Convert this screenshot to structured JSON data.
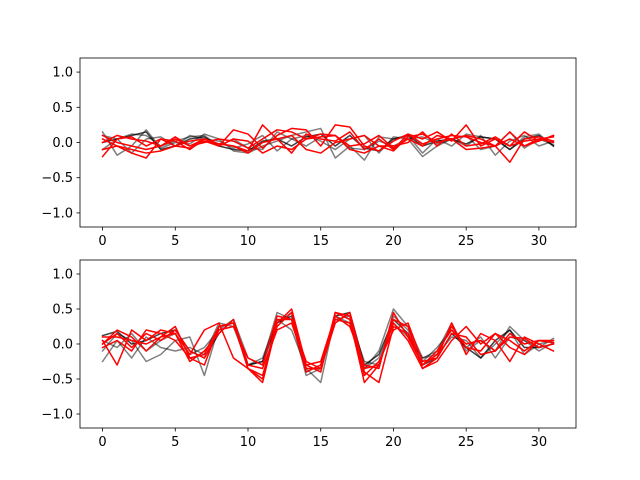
{
  "chart_data": [
    {
      "type": "line",
      "title": "",
      "xlabel": "",
      "ylabel": "",
      "xlim": [
        -1.55,
        32.55
      ],
      "ylim": [
        -1.2,
        1.2
      ],
      "xticks": [
        0,
        5,
        10,
        15,
        20,
        25,
        30
      ],
      "yticks": [
        -1.0,
        -0.5,
        0.0,
        0.5,
        1.0
      ],
      "xtick_labels": [
        "0",
        "5",
        "10",
        "15",
        "20",
        "25",
        "30"
      ],
      "ytick_labels": [
        "−1.0",
        "−0.5",
        "0.0",
        "0.5",
        "1.0"
      ],
      "grid": false,
      "series": [
        {
          "color": "#000000",
          "alpha": 0.5,
          "values": [
            0.15,
            -0.18,
            -0.05,
            0.18,
            -0.08,
            0.0,
            -0.02,
            0.12,
            0.05,
            -0.12,
            -0.15,
            -0.05,
            0.02,
            0.1,
            0.15,
            0.2,
            -0.22,
            -0.05,
            -0.25,
            0.08,
            0.05,
            0.1,
            -0.15,
            0.05,
            -0.05,
            0.12,
            0.08,
            0.05,
            -0.1,
            0.08,
            0.12,
            -0.05
          ]
        },
        {
          "color": "#000000",
          "alpha": 0.5,
          "values": [
            0.1,
            0.05,
            -0.15,
            0.05,
            0.08,
            -0.05,
            0.1,
            0.05,
            0.02,
            -0.08,
            -0.02,
            0.1,
            -0.12,
            0.05,
            0.1,
            0.02,
            -0.1,
            0.05,
            0.1,
            -0.15,
            0.08,
            0.05,
            -0.2,
            -0.05,
            0.05,
            0.1,
            -0.1,
            -0.05,
            0.15,
            -0.08,
            0.05,
            -0.03
          ]
        },
        {
          "color": "#000000",
          "alpha": 0.5,
          "values": [
            -0.1,
            0.05,
            0.12,
            0.1,
            -0.05,
            0.02,
            0.08,
            0.1,
            -0.05,
            0.05,
            -0.08,
            -0.1,
            0.15,
            0.05,
            -0.05,
            0.08,
            0.1,
            -0.08,
            -0.1,
            0.02,
            -0.05,
            0.05,
            0.08,
            -0.02,
            0.05,
            -0.05,
            0.1,
            -0.18,
            0.02,
            0.1,
            -0.05,
            0.02
          ]
        },
        {
          "color": "#000000",
          "alpha": 0.75,
          "values": [
            0.0,
            0.05,
            0.1,
            0.15,
            -0.1,
            -0.05,
            0.05,
            0.08,
            -0.05,
            -0.1,
            -0.12,
            0.02,
            0.05,
            -0.05,
            0.08,
            0.12,
            -0.05,
            0.1,
            -0.08,
            -0.12,
            0.05,
            0.1,
            -0.05,
            0.02,
            0.05,
            -0.02,
            0.08,
            0.05,
            -0.1,
            0.05,
            0.1,
            -0.05
          ]
        },
        {
          "color": "#ff0000",
          "alpha": 1.0,
          "values": [
            -0.2,
            0.05,
            0.08,
            -0.05,
            0.05,
            -0.05,
            0.02,
            0.05,
            -0.05,
            0.18,
            0.12,
            -0.08,
            0.1,
            0.2,
            0.18,
            -0.05,
            0.25,
            0.22,
            -0.05,
            -0.12,
            0.02,
            0.12,
            0.05,
            0.15,
            0.02,
            0.25,
            -0.05,
            0.05,
            -0.05,
            0.15,
            0.02,
            0.1
          ]
        },
        {
          "color": "#ff0000",
          "alpha": 1.0,
          "values": [
            0.05,
            -0.05,
            -0.15,
            -0.22,
            0.05,
            0.02,
            -0.1,
            0.05,
            -0.02,
            -0.05,
            -0.12,
            0.25,
            0.05,
            -0.15,
            0.12,
            0.05,
            0.02,
            0.15,
            -0.1,
            0.05,
            -0.1,
            0.12,
            -0.02,
            0.05,
            0.1,
            0.08,
            0.0,
            -0.05,
            0.15,
            -0.05,
            0.05,
            0.08
          ]
        },
        {
          "color": "#ff0000",
          "alpha": 1.0,
          "values": [
            0.1,
            0.0,
            -0.05,
            -0.1,
            -0.05,
            0.05,
            -0.05,
            0.0,
            0.05,
            0.02,
            -0.08,
            0.05,
            0.18,
            0.15,
            0.05,
            0.12,
            0.1,
            -0.05,
            -0.02,
            0.1,
            -0.08,
            0.05,
            -0.05,
            0.1,
            0.05,
            0.1,
            0.05,
            -0.05,
            -0.28,
            0.05,
            0.08,
            0.02
          ]
        },
        {
          "color": "#ff0000",
          "alpha": 1.0,
          "values": [
            -0.1,
            -0.05,
            -0.1,
            -0.15,
            -0.12,
            -0.05,
            -0.08,
            0.02,
            -0.05,
            0.05,
            0.02,
            -0.15,
            -0.05,
            -0.1,
            0.05,
            0.08,
            0.1,
            -0.1,
            -0.15,
            -0.05,
            -0.12,
            0.08,
            0.12,
            0.0,
            0.05,
            -0.1,
            -0.08,
            -0.05,
            0.05,
            -0.05,
            0.02,
            0.1
          ]
        },
        {
          "color": "#ff0000",
          "alpha": 1.0,
          "values": [
            0.0,
            0.1,
            0.05,
            0.02,
            -0.05,
            0.08,
            -0.05,
            0.05,
            -0.02,
            -0.05,
            -0.15,
            0.0,
            0.05,
            0.1,
            -0.1,
            -0.15,
            0.0,
            0.05,
            0.1,
            -0.05,
            -0.05,
            0.0,
            0.15,
            -0.05,
            0.12,
            -0.05,
            -0.02,
            0.08,
            -0.05,
            0.02,
            0.05,
            0.0
          ]
        }
      ]
    },
    {
      "type": "line",
      "title": "",
      "xlabel": "",
      "ylabel": "",
      "xlim": [
        -1.55,
        32.55
      ],
      "ylim": [
        -1.2,
        1.2
      ],
      "xticks": [
        0,
        5,
        10,
        15,
        20,
        25,
        30
      ],
      "yticks": [
        -1.0,
        -0.5,
        0.0,
        0.5,
        1.0
      ],
      "xtick_labels": [
        "0",
        "5",
        "10",
        "15",
        "20",
        "25",
        "30"
      ],
      "ytick_labels": [
        "−1.0",
        "−0.5",
        "0.0",
        "0.5",
        "1.0"
      ],
      "grid": false,
      "series": [
        {
          "color": "#000000",
          "alpha": 0.5,
          "values": [
            -0.25,
            0.05,
            -0.2,
            0.1,
            -0.05,
            -0.1,
            -0.05,
            -0.15,
            0.3,
            0.25,
            -0.3,
            -0.2,
            0.35,
            0.2,
            -0.35,
            -0.55,
            0.4,
            0.3,
            -0.35,
            -0.1,
            0.5,
            0.25,
            -0.2,
            -0.1,
            0.3,
            -0.1,
            0.05,
            -0.1,
            0.25,
            0.05,
            -0.05,
            0.08
          ]
        },
        {
          "color": "#000000",
          "alpha": 0.5,
          "values": [
            -0.1,
            0.15,
            0.05,
            -0.25,
            -0.15,
            0.05,
            0.1,
            -0.45,
            0.25,
            0.3,
            -0.3,
            -0.25,
            0.45,
            0.35,
            -0.45,
            -0.35,
            0.35,
            0.4,
            -0.35,
            -0.2,
            0.3,
            0.1,
            -0.2,
            -0.15,
            0.1,
            0.05,
            -0.2,
            0.0,
            0.2,
            -0.15,
            0.0,
            0.05
          ]
        },
        {
          "color": "#000000",
          "alpha": 0.5,
          "values": [
            0.05,
            -0.05,
            0.15,
            -0.1,
            0.05,
            0.15,
            -0.15,
            -0.05,
            0.2,
            0.35,
            -0.2,
            -0.3,
            0.3,
            0.45,
            -0.3,
            -0.4,
            0.45,
            0.35,
            -0.25,
            -0.3,
            0.4,
            0.2,
            -0.25,
            -0.05,
            0.2,
            -0.05,
            0.1,
            -0.2,
            0.1,
            0.05,
            -0.1,
            0.02
          ]
        },
        {
          "color": "#000000",
          "alpha": 0.75,
          "values": [
            0.12,
            0.18,
            0.0,
            0.05,
            0.15,
            0.2,
            -0.1,
            -0.2,
            0.15,
            0.35,
            -0.3,
            -0.25,
            0.3,
            0.4,
            -0.4,
            -0.3,
            0.4,
            0.45,
            -0.3,
            -0.15,
            0.35,
            0.15,
            -0.3,
            -0.2,
            0.15,
            -0.05,
            -0.2,
            0.05,
            0.2,
            -0.05,
            -0.05,
            0.0
          ]
        },
        {
          "color": "#ff0000",
          "alpha": 1.0,
          "values": [
            0.0,
            0.2,
            0.1,
            -0.1,
            0.1,
            0.25,
            -0.2,
            -0.3,
            0.25,
            0.3,
            -0.35,
            -0.55,
            0.3,
            0.5,
            -0.3,
            -0.4,
            0.45,
            0.35,
            -0.55,
            -0.3,
            0.35,
            0.25,
            -0.35,
            -0.2,
            0.3,
            -0.15,
            0.15,
            0.05,
            -0.25,
            0.1,
            0.0,
            -0.1
          ]
        },
        {
          "color": "#ff0000",
          "alpha": 1.0,
          "values": [
            0.05,
            -0.3,
            0.2,
            0.05,
            0.2,
            0.15,
            -0.15,
            0.2,
            0.3,
            -0.2,
            -0.35,
            -0.45,
            0.25,
            0.45,
            -0.35,
            -0.35,
            0.45,
            0.4,
            -0.4,
            -0.55,
            0.25,
            0.15,
            -0.3,
            -0.15,
            0.25,
            -0.05,
            -0.1,
            0.15,
            -0.05,
            -0.15,
            0.05,
            0.02
          ]
        },
        {
          "color": "#ff0000",
          "alpha": 1.0,
          "values": [
            -0.05,
            0.05,
            -0.1,
            0.2,
            0.15,
            0.05,
            -0.2,
            -0.15,
            0.25,
            0.3,
            -0.35,
            -0.5,
            0.35,
            0.35,
            -0.25,
            -0.35,
            0.3,
            0.45,
            -0.35,
            -0.3,
            0.3,
            0.05,
            -0.35,
            -0.25,
            0.05,
            0.25,
            0.0,
            0.15,
            0.05,
            -0.1,
            0.05,
            0.05
          ]
        },
        {
          "color": "#ff0000",
          "alpha": 1.0,
          "values": [
            0.0,
            0.15,
            -0.05,
            0.15,
            0.05,
            0.2,
            -0.1,
            -0.2,
            0.2,
            0.25,
            -0.2,
            -0.3,
            0.4,
            0.35,
            -0.4,
            -0.3,
            0.35,
            0.3,
            -0.45,
            -0.25,
            0.2,
            0.3,
            -0.25,
            -0.2,
            0.15,
            0.1,
            -0.15,
            -0.1,
            0.15,
            0.0,
            0.05,
            0.02
          ]
        },
        {
          "color": "#ff0000",
          "alpha": 1.0,
          "values": [
            0.1,
            0.1,
            0.05,
            0.0,
            0.1,
            0.15,
            -0.25,
            -0.1,
            0.15,
            0.35,
            -0.3,
            -0.35,
            0.2,
            0.3,
            -0.3,
            -0.25,
            0.4,
            0.25,
            -0.3,
            -0.35,
            0.45,
            0.1,
            -0.3,
            -0.1,
            0.2,
            0.0,
            0.05,
            -0.1,
            0.1,
            0.08,
            -0.05,
            0.0
          ]
        }
      ]
    }
  ]
}
